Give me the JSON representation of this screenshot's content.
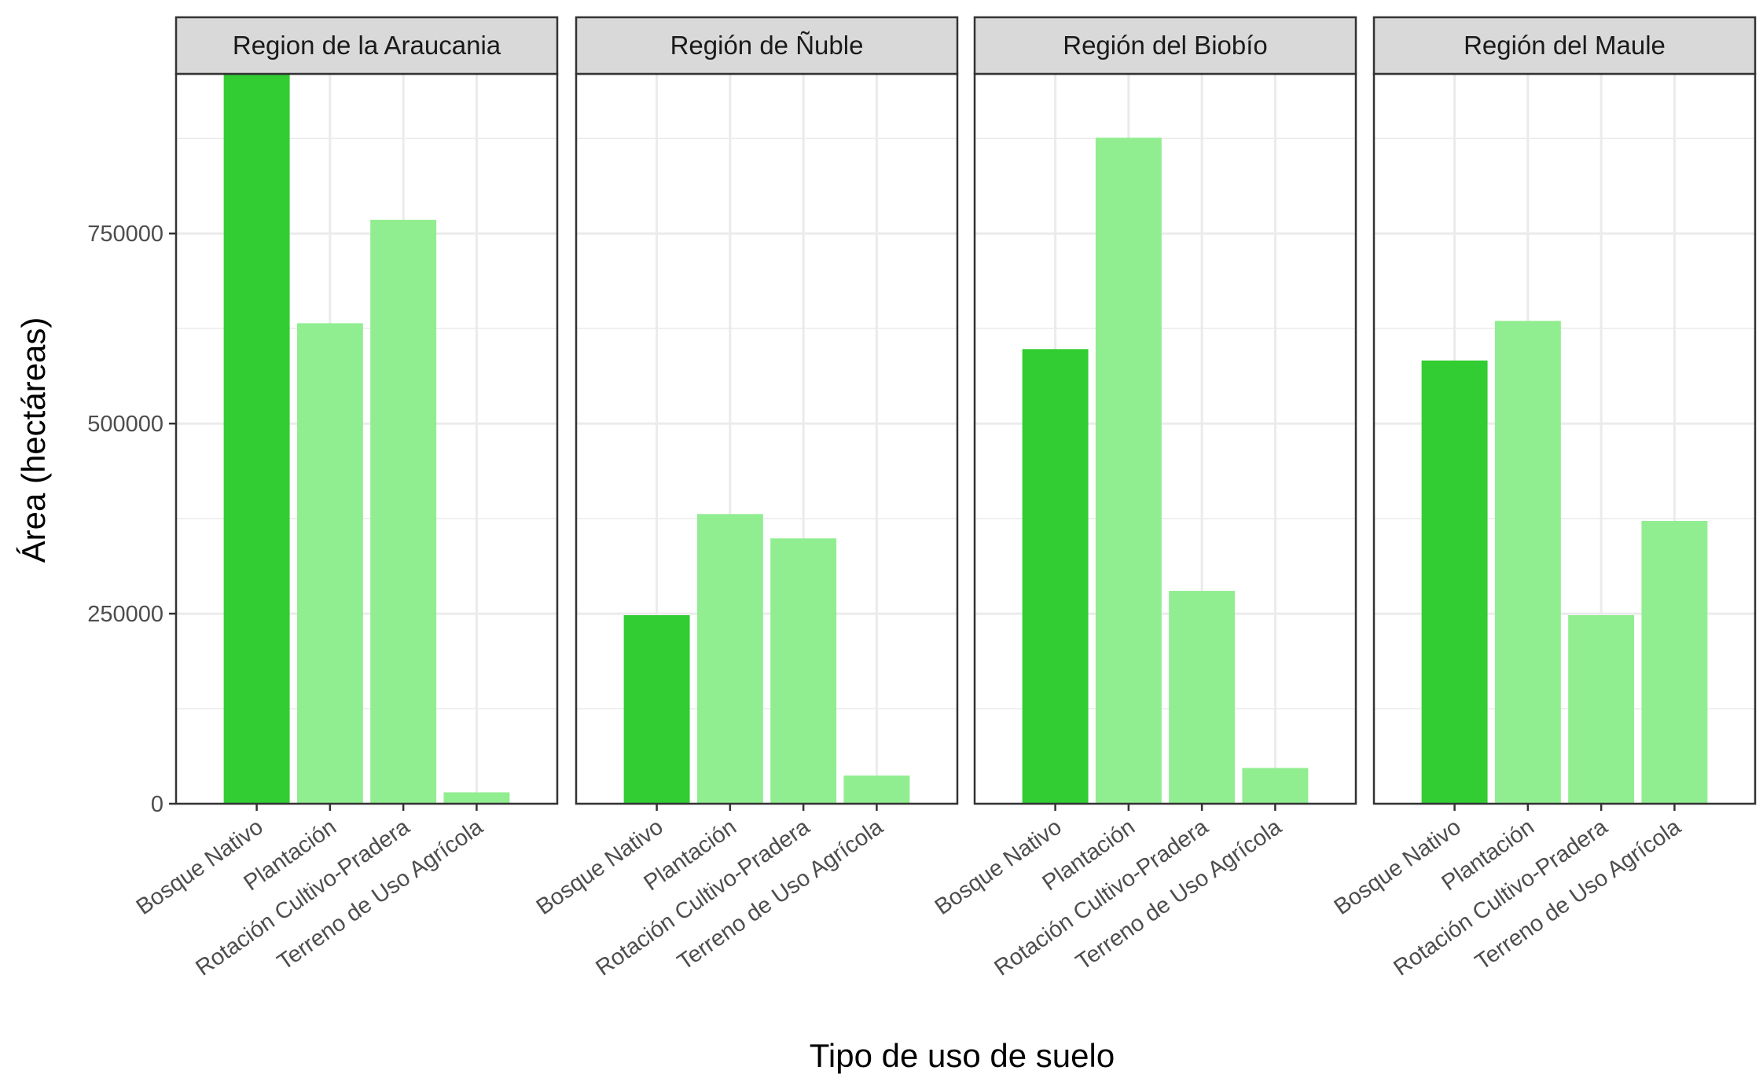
{
  "chart_data": {
    "type": "bar",
    "xlabel": "Tipo de uso de suelo",
    "ylabel": "Área (hectáreas)",
    "categories": [
      "Bosque Nativo",
      "Plantación",
      "Rotación Cultivo-Pradera",
      "Terreno de Uso Agrícola"
    ],
    "y_ticks": [
      "0",
      "250000",
      "500000",
      "750000"
    ],
    "y_tick_values": [
      0,
      250000,
      500000,
      750000
    ],
    "ylim": [
      0,
      960000
    ],
    "grid": true,
    "legend": "none",
    "colors": {
      "Bosque Nativo": "#32CD32",
      "other": "#90EE90",
      "panel_border": "#333333",
      "strip_fill": "#D9D9D9",
      "grid": "#EBEBEB"
    },
    "panels": [
      {
        "label": "Region de la Araucania",
        "values": [
          960000,
          632000,
          768000,
          15000
        ]
      },
      {
        "label": "Región de Ñuble",
        "values": [
          248000,
          381000,
          349000,
          37000
        ]
      },
      {
        "label": "Región del Biobío",
        "values": [
          598000,
          876000,
          280000,
          47000
        ]
      },
      {
        "label": "Región del Maule",
        "values": [
          583000,
          635000,
          248000,
          372000
        ]
      }
    ]
  }
}
